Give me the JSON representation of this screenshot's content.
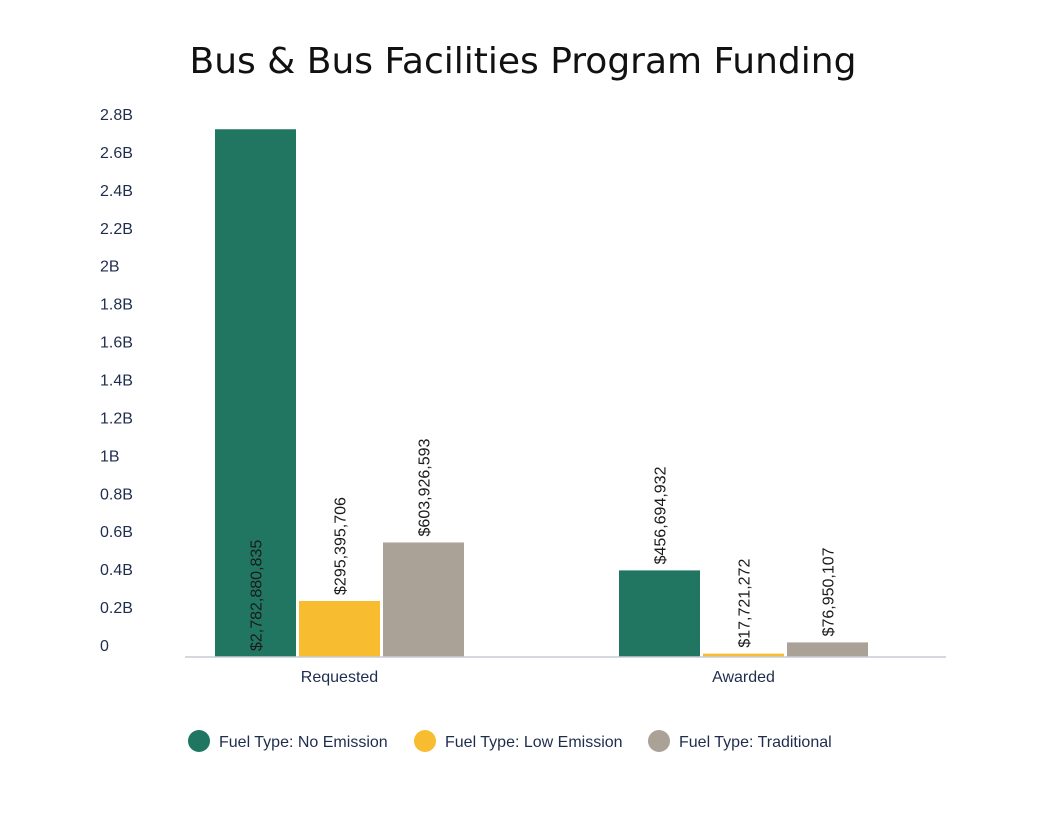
{
  "chart_data": {
    "type": "bar",
    "title": "Bus & Bus Facilities Program Funding",
    "categories": [
      "Requested",
      "Awarded"
    ],
    "series": [
      {
        "name": "Fuel Type: No Emission",
        "color": "#217662",
        "values": [
          2782880835,
          456694932
        ],
        "value_labels": [
          "$2,782,880,835",
          "$456,694,932"
        ]
      },
      {
        "name": "Fuel Type: Low Emission",
        "color": "#f8bc30",
        "values": [
          295395706,
          17721272
        ],
        "value_labels": [
          "$295,395,706",
          "$17,721,272"
        ]
      },
      {
        "name": "Fuel Type: Traditional",
        "color": "#aaa197",
        "values": [
          603926593,
          76950107
        ],
        "value_labels": [
          "$603,926,593",
          "$76,950,107"
        ]
      }
    ],
    "ylim": [
      0,
      2800000000
    ],
    "yticks": [
      0,
      200000000,
      400000000,
      600000000,
      800000000,
      1000000000,
      1200000000,
      1400000000,
      1600000000,
      1800000000,
      2000000000,
      2200000000,
      2400000000,
      2600000000,
      2800000000
    ],
    "ytick_labels": [
      "0",
      "0.2B",
      "0.4B",
      "0.6B",
      "0.8B",
      "1B",
      "1.2B",
      "1.4B",
      "1.6B",
      "1.8B",
      "2B",
      "2.2B",
      "2.4B",
      "2.6B",
      "2.8B"
    ],
    "grid": false,
    "legend_position": "bottom"
  }
}
